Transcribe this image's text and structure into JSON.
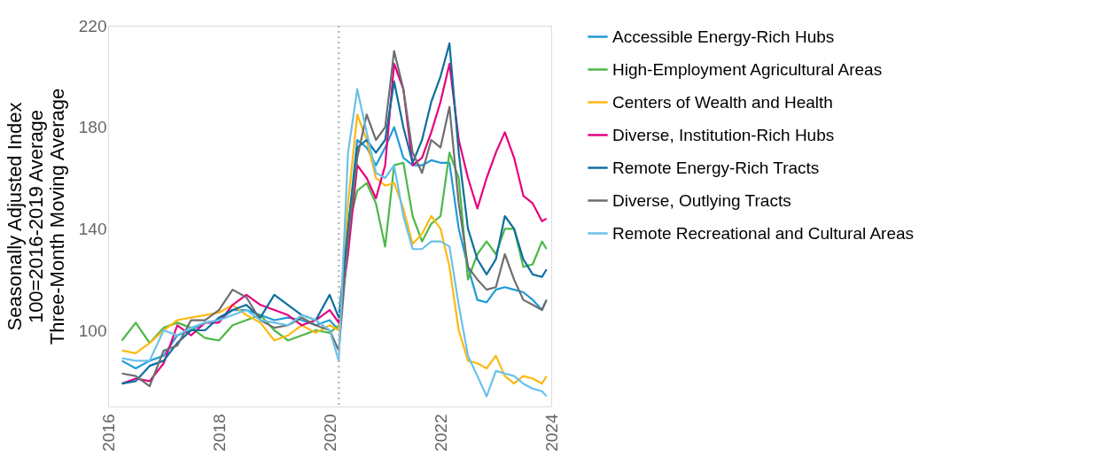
{
  "chart_data": {
    "type": "line",
    "ylabel": "Seasonally Adjusted Index\n100=2016-2019 Average\nThree-Month Moving Average",
    "x": [
      "2016-04",
      "2016-07",
      "2016-10",
      "2017-01",
      "2017-04",
      "2017-07",
      "2017-10",
      "2018-01",
      "2018-04",
      "2018-07",
      "2018-10",
      "2019-01",
      "2019-04",
      "2019-07",
      "2019-10",
      "2020-01",
      "2020-03",
      "2020-05",
      "2020-07",
      "2020-09",
      "2020-11",
      "2021-01",
      "2021-03",
      "2021-05",
      "2021-07",
      "2021-09",
      "2021-11",
      "2022-01",
      "2022-03",
      "2022-05",
      "2022-07",
      "2022-09",
      "2022-11",
      "2023-01",
      "2023-03",
      "2023-05",
      "2023-07",
      "2023-09",
      "2023-11",
      "2023-12"
    ],
    "series": [
      {
        "name": "Accessible Energy-Rich Hubs",
        "color": "#1f9bd7",
        "values": [
          88,
          85,
          88,
          90,
          98,
          100,
          103,
          104,
          108,
          108,
          106,
          104,
          105,
          104,
          102,
          104,
          100,
          140,
          175,
          172,
          165,
          172,
          180,
          168,
          165,
          165,
          167,
          166,
          166,
          140,
          125,
          112,
          111,
          116,
          117,
          116,
          115,
          112,
          108,
          112
        ]
      },
      {
        "name": "High-Employment Agricultural Areas",
        "color": "#4db848",
        "values": [
          96,
          103,
          95,
          101,
          103,
          101,
          97,
          96,
          102,
          104,
          106,
          100,
          96,
          98,
          100,
          99,
          102,
          140,
          155,
          158,
          150,
          133,
          165,
          166,
          145,
          135,
          142,
          145,
          170,
          160,
          120,
          130,
          135,
          130,
          140,
          140,
          125,
          126,
          135,
          132
        ]
      },
      {
        "name": "Centers of Wealth and Health",
        "color": "#fdb913",
        "values": [
          92,
          91,
          95,
          100,
          104,
          105,
          106,
          107,
          110,
          106,
          103,
          96,
          98,
          102,
          99,
          102,
          100,
          150,
          185,
          175,
          160,
          157,
          158,
          148,
          134,
          138,
          145,
          140,
          125,
          100,
          88,
          87,
          85,
          90,
          82,
          79,
          82,
          81,
          79,
          82
        ]
      },
      {
        "name": "Diverse, Institution-Rich Hubs",
        "color": "#e6007e",
        "values": [
          79,
          81,
          80,
          87,
          102,
          98,
          103,
          103,
          110,
          114,
          110,
          108,
          106,
          102,
          104,
          108,
          103,
          130,
          165,
          160,
          152,
          165,
          205,
          195,
          165,
          168,
          178,
          190,
          205,
          175,
          160,
          148,
          160,
          170,
          178,
          168,
          153,
          150,
          143,
          144
        ]
      },
      {
        "name": "Remote Energy-Rich Tracts",
        "color": "#0e6f9e",
        "values": [
          79,
          80,
          86,
          88,
          95,
          100,
          100,
          105,
          108,
          110,
          105,
          114,
          110,
          106,
          104,
          114,
          105,
          140,
          172,
          175,
          170,
          175,
          198,
          180,
          166,
          175,
          190,
          200,
          213,
          170,
          140,
          128,
          122,
          128,
          145,
          140,
          128,
          122,
          121,
          124
        ]
      },
      {
        "name": "Diverse, Outlying Tracts",
        "color": "#6d6e71",
        "values": [
          83,
          82,
          78,
          92,
          94,
          104,
          104,
          108,
          116,
          113,
          104,
          101,
          102,
          105,
          102,
          100,
          92,
          135,
          168,
          185,
          175,
          180,
          210,
          195,
          170,
          162,
          175,
          172,
          188,
          150,
          125,
          120,
          116,
          117,
          130,
          120,
          112,
          110,
          108,
          112
        ]
      },
      {
        "name": "Remote Recreational and Cultural Areas",
        "color": "#6bc1e9",
        "values": [
          89,
          88,
          88,
          100,
          98,
          101,
          103,
          104,
          106,
          108,
          104,
          103,
          102,
          106,
          104,
          100,
          88,
          170,
          195,
          178,
          162,
          160,
          165,
          145,
          132,
          132,
          135,
          135,
          133,
          110,
          90,
          82,
          74,
          84,
          83,
          82,
          79,
          77,
          76,
          74
        ]
      }
    ],
    "xlim": [
      "2016-01",
      "2024-01"
    ],
    "xticks": [
      "2016",
      "2018",
      "2020",
      "2022",
      "2024"
    ],
    "ylim": [
      70,
      220
    ],
    "yticks": [
      100,
      140,
      180,
      220
    ],
    "ref_lines": [
      {
        "axis": "x",
        "value": "2020-03",
        "color": "#bbbbbb",
        "line_style": "dotted"
      }
    ],
    "grid": false,
    "legend": "right",
    "line_style": "solid",
    "marker": "none"
  }
}
